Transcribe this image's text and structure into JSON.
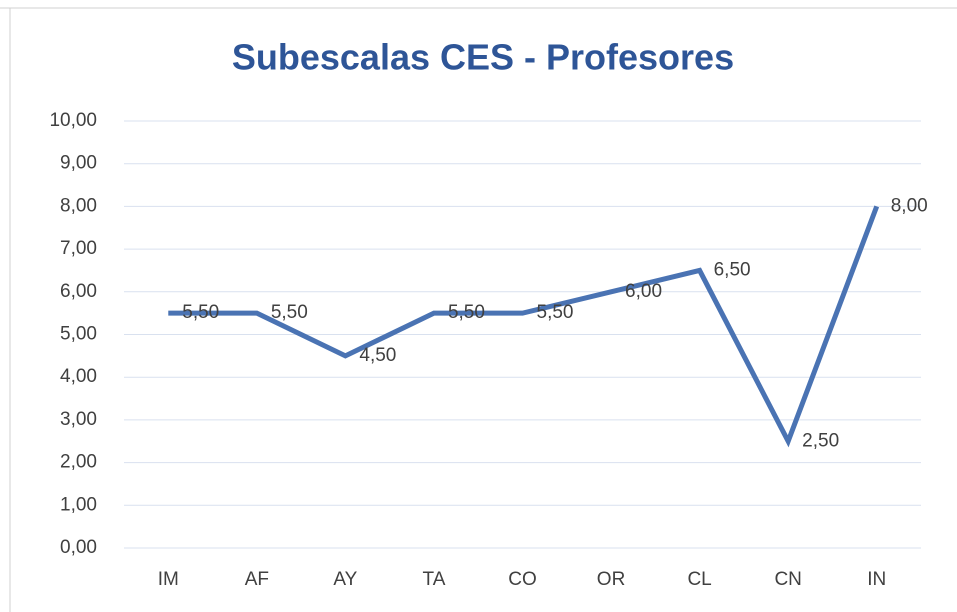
{
  "chart_data": {
    "type": "line",
    "title": "Subescalas CES - Profesores",
    "categories": [
      "IM",
      "AF",
      "AY",
      "TA",
      "CO",
      "OR",
      "CL",
      "CN",
      "IN"
    ],
    "values": [
      5.5,
      5.5,
      4.5,
      5.5,
      5.5,
      6.0,
      6.5,
      2.5,
      8.0
    ],
    "value_labels": [
      "5,50",
      "5,50",
      "4,50",
      "5,50",
      "5,50",
      "6,00",
      "6,50",
      "2,50",
      "8,00"
    ],
    "color": "#4a73b3",
    "ylim": [
      0,
      10
    ],
    "yticks": [
      {
        "value": 0,
        "label": "0,00"
      },
      {
        "value": 1,
        "label": "1,00"
      },
      {
        "value": 2,
        "label": "2,00"
      },
      {
        "value": 3,
        "label": "3,00"
      },
      {
        "value": 4,
        "label": "4,00"
      },
      {
        "value": 5,
        "label": "5,00"
      },
      {
        "value": 6,
        "label": "6,00"
      },
      {
        "value": 7,
        "label": "7,00"
      },
      {
        "value": 8,
        "label": "8,00"
      },
      {
        "value": 9,
        "label": "9,00"
      },
      {
        "value": 10,
        "label": "10,00"
      }
    ],
    "grid": true
  }
}
